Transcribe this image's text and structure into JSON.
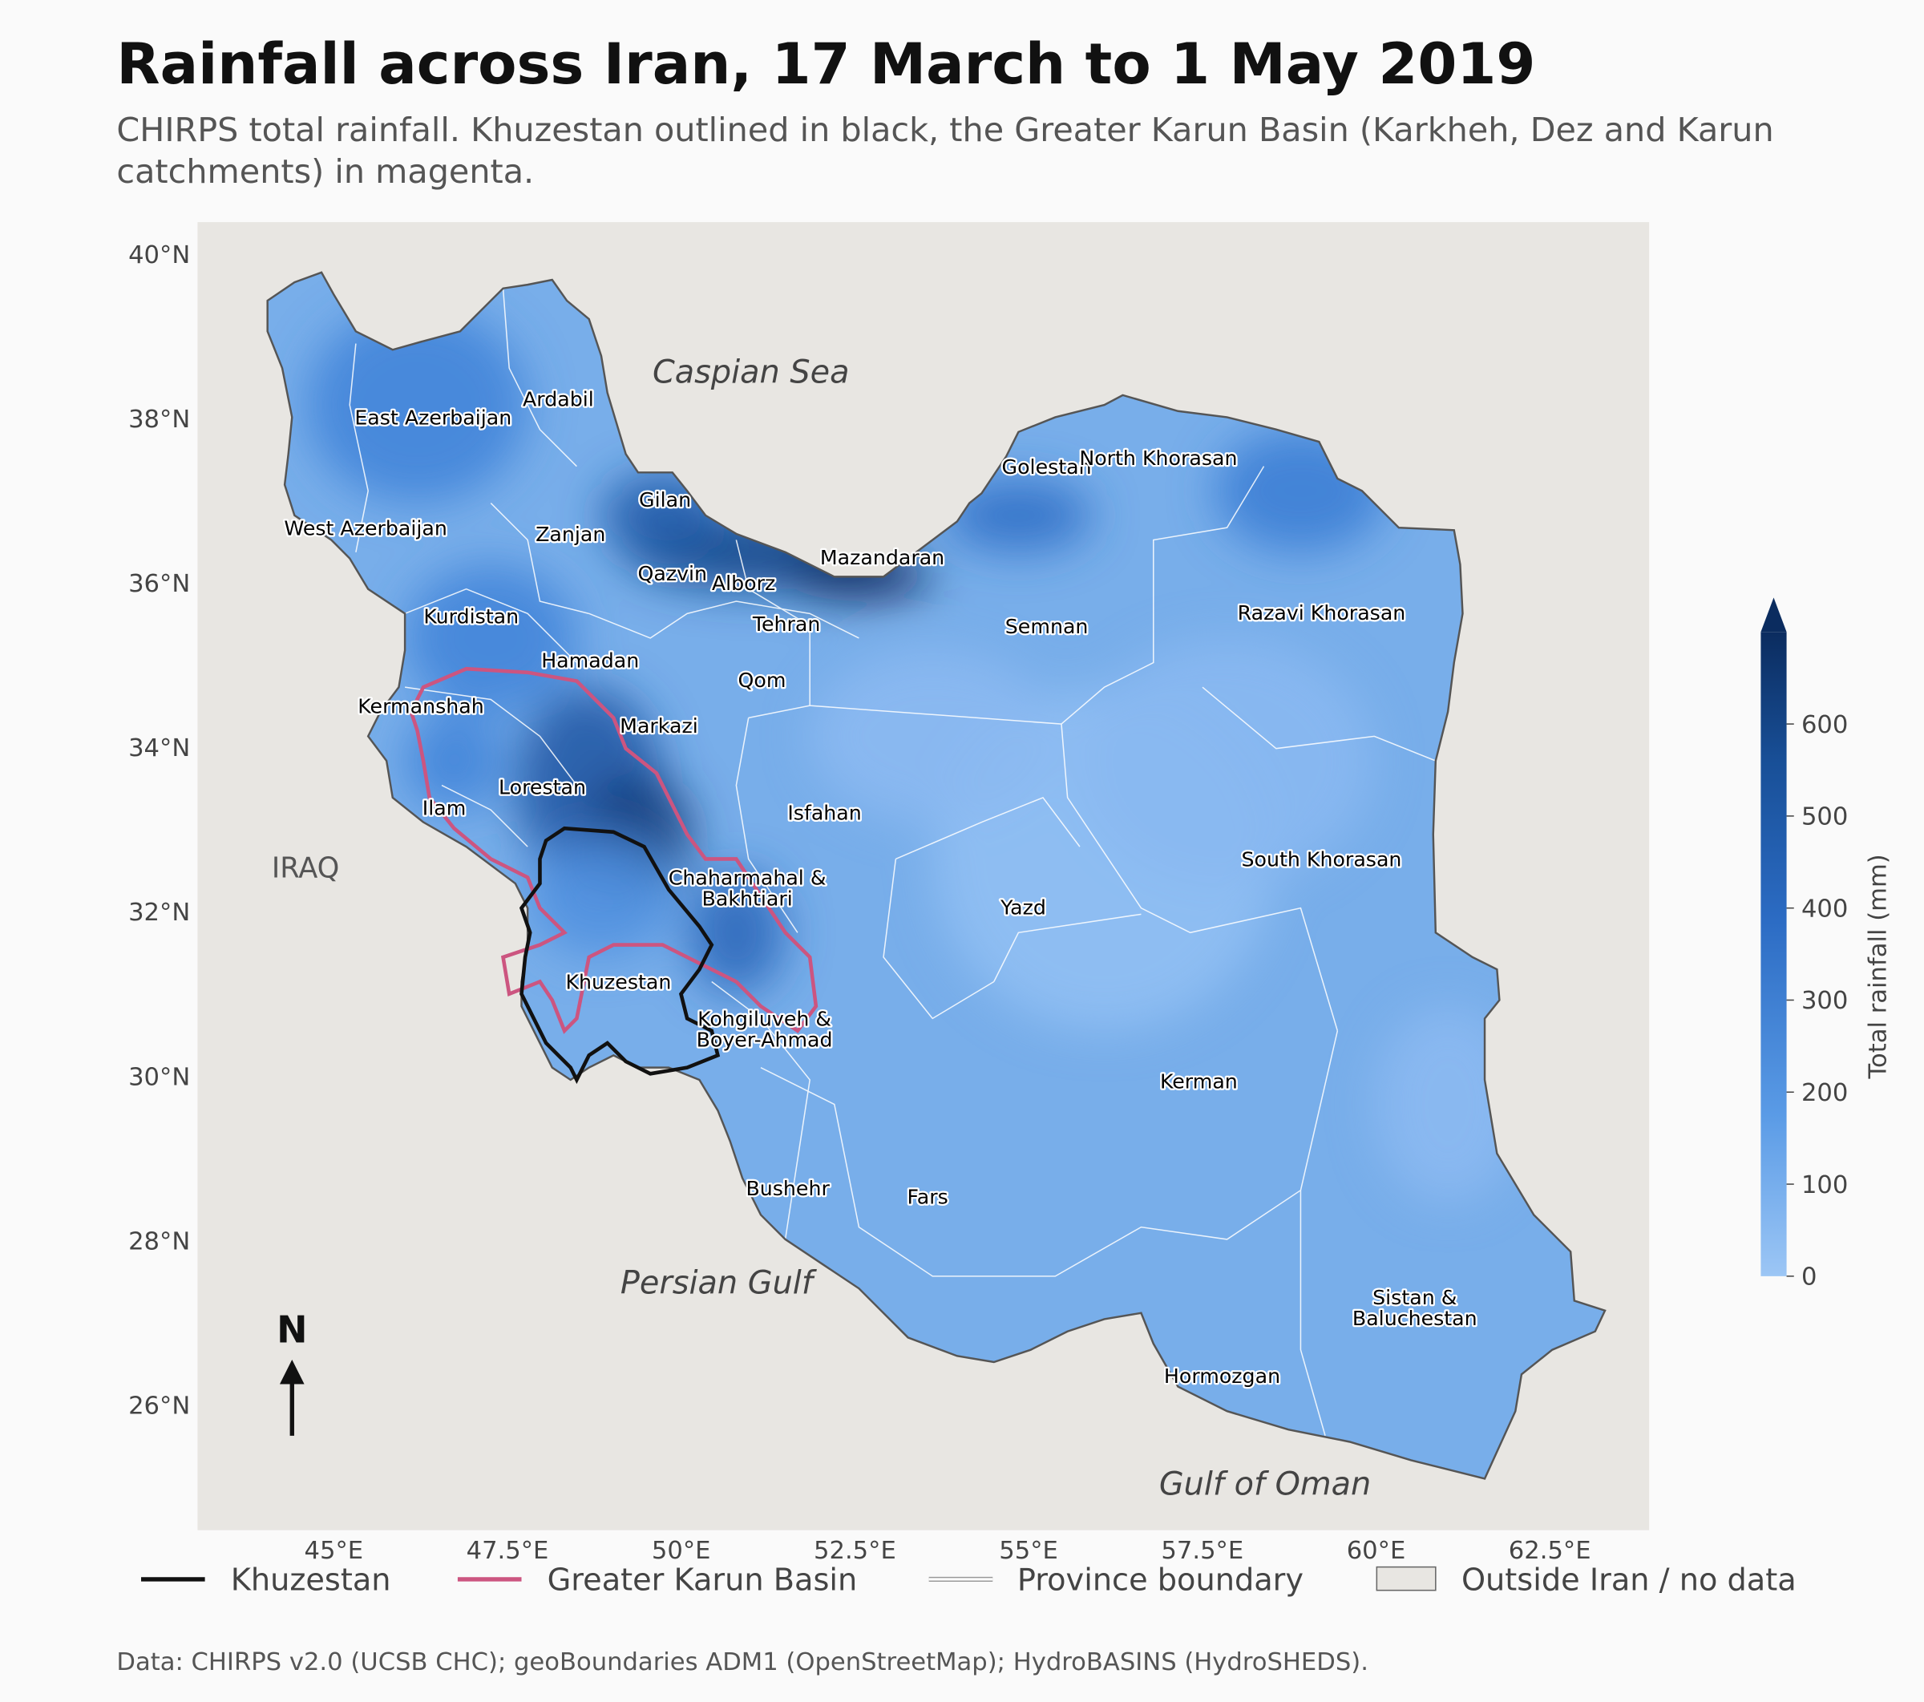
{
  "title": "Rainfall across Iran, 17 March to 1 May 2019",
  "subtitle": [
    "CHIRPS total rainfall. Khuzestan outlined in black, the Greater Karun Basin (Karkheh, Dez and Karun",
    "catchments) in magenta."
  ],
  "map": {
    "lonlim": [
      43.04,
      63.93
    ],
    "latlim": [
      24.48,
      40.39
    ],
    "lonticks": [
      {
        "value": 45,
        "label": "45°E"
      },
      {
        "value": 47.5,
        "label": "47.5°E"
      },
      {
        "value": 50,
        "label": "50°E"
      },
      {
        "value": 52.5,
        "label": "52.5°E"
      },
      {
        "value": 55,
        "label": "55°E"
      },
      {
        "value": 57.5,
        "label": "57.5°E"
      },
      {
        "value": 60,
        "label": "60°E"
      },
      {
        "value": 62.5,
        "label": "62.5°E"
      }
    ],
    "latticks": [
      {
        "value": 26,
        "label": "26°N"
      },
      {
        "value": 28,
        "label": "28°N"
      },
      {
        "value": 30,
        "label": "30°N"
      },
      {
        "value": 32,
        "label": "32°N"
      },
      {
        "value": 34,
        "label": "34°N"
      },
      {
        "value": 36,
        "label": "36°N"
      },
      {
        "value": 38,
        "label": "38°N"
      },
      {
        "value": 40,
        "label": "40°N"
      }
    ],
    "water_labels": [
      "Caspian Sea",
      "Persian Gulf",
      "Gulf of Oman"
    ],
    "country_labels": [
      "IRAQ"
    ],
    "province_labels": [
      [
        "East Azerbaijan"
      ],
      [
        "Ardabil"
      ],
      [
        "West Azerbaijan"
      ],
      [
        "Zanjan"
      ],
      [
        "Gilan"
      ],
      [
        "Qazvin"
      ],
      [
        "Alborz"
      ],
      [
        "Mazandaran"
      ],
      [
        "Golestan"
      ],
      [
        "North Khorasan"
      ],
      [
        "Razavi Khorasan"
      ],
      [
        "Semnan"
      ],
      [
        "Tehran"
      ],
      [
        "Kurdistan"
      ],
      [
        "Hamadan"
      ],
      [
        "Qom"
      ],
      [
        "Kermanshah"
      ],
      [
        "Markazi"
      ],
      [
        "Lorestan"
      ],
      [
        "Ilam"
      ],
      [
        "Isfahan"
      ],
      [
        "Chaharmahal &",
        "Bakhtiari"
      ],
      [
        "Yazd"
      ],
      [
        "South Khorasan"
      ],
      [
        "Khuzestan"
      ],
      [
        "Kohgiluveh &",
        "Boyer-Ahmad"
      ],
      [
        "Kerman"
      ],
      [
        "Bushehr"
      ],
      [
        "Fars"
      ],
      [
        "Sistan &",
        "Baluchestan"
      ],
      [
        "Hormozgan"
      ]
    ],
    "north": "N"
  },
  "colorbar": {
    "label": "Total rainfall (mm)",
    "lim": [
      0,
      700
    ],
    "ticks": [
      0,
      100,
      200,
      300,
      400,
      500,
      600
    ],
    "extend": "max"
  },
  "legend": [
    "Khuzestan",
    "Greater Karun Basin",
    "Province boundary",
    "Outside Iran / no data"
  ],
  "source": "Data: CHIRPS v2.0 (UCSB CHC); geoBoundaries ADM1 (OpenStreetMap); HydroBASINS (HydroSHEDS)."
}
